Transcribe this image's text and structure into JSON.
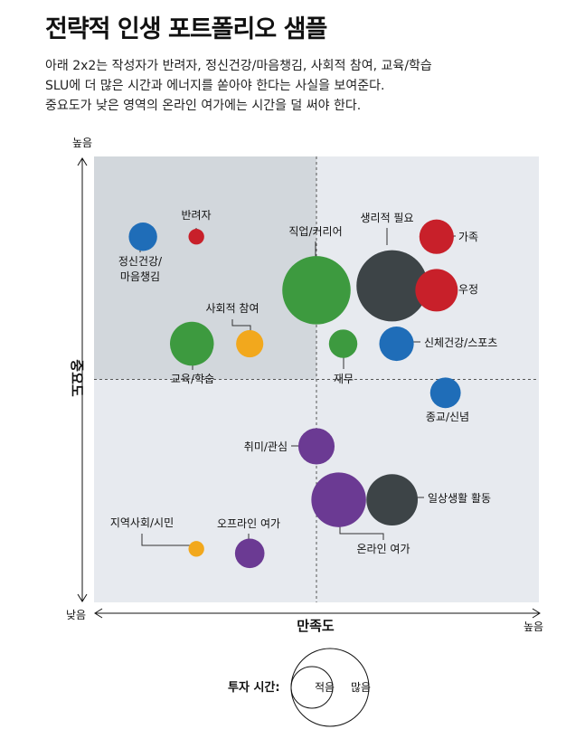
{
  "header": {
    "title": "전략적 인생 포트폴리오 샘플",
    "desc_lines": [
      "아래 2x2는 작성자가 반려자, 정신건강/마음챙김, 사회적 참여, 교육/학습",
      "SLU에 더 많은 시간과 에너지를 쏟아야 한다는 사실을 보여준다.",
      "중요도가 낮은 영역의 온라인 여가에는 시간을 덜 써야 한다."
    ]
  },
  "colors": {
    "red": "#c8202a",
    "dark": "#3d4447",
    "green": "#3d9a3f",
    "blue": "#1f6db8",
    "purple": "#6b3a93",
    "orange": "#f2a81d",
    "quadrant_highlight": "#d2d7dc",
    "quadrant_base": "#e7eaef"
  },
  "chart_data": {
    "type": "scatter",
    "xlabel": "만족도",
    "ylabel": "중요도",
    "x_low_label": "낮음",
    "x_high_label": "높음",
    "y_low_label": "낮음",
    "y_high_label": "높음",
    "xlim": [
      0,
      10
    ],
    "ylim": [
      0,
      10
    ],
    "size_legend": {
      "title": "투자 시간:",
      "small_label": "적음",
      "large_label": "많음"
    },
    "points": [
      {
        "name": "반려자",
        "x": 2.3,
        "y": 8.2,
        "size": 0.2,
        "color": "red"
      },
      {
        "name": "가족",
        "x": 7.7,
        "y": 8.2,
        "size": 1.6,
        "color": "red"
      },
      {
        "name": "우정",
        "x": 7.7,
        "y": 7.0,
        "size": 2.6,
        "color": "red"
      },
      {
        "name": "생리적 필요",
        "x": 6.7,
        "y": 7.1,
        "size": 8.2,
        "color": "dark"
      },
      {
        "name": "일상생활 활동",
        "x": 6.7,
        "y": 2.3,
        "size": 4.0,
        "color": "dark"
      },
      {
        "name": "직업/커리어",
        "x": 5.0,
        "y": 7.0,
        "size": 7.5,
        "color": "green"
      },
      {
        "name": "교육/학습",
        "x": 2.2,
        "y": 5.8,
        "size": 2.8,
        "color": "green"
      },
      {
        "name": "재무",
        "x": 5.6,
        "y": 5.8,
        "size": 1.0,
        "color": "green"
      },
      {
        "name": "정신건강/\n마음챙김",
        "x": 1.1,
        "y": 8.2,
        "size": 1.0,
        "color": "blue"
      },
      {
        "name": "신체건강/스포츠",
        "x": 6.8,
        "y": 5.8,
        "size": 1.6,
        "color": "blue"
      },
      {
        "name": "종교/신념",
        "x": 7.9,
        "y": 4.7,
        "size": 1.2,
        "color": "blue"
      },
      {
        "name": "사회적 참여",
        "x": 3.5,
        "y": 5.8,
        "size": 0.9,
        "color": "orange"
      },
      {
        "name": "지역사회/시민",
        "x": 2.3,
        "y": 1.2,
        "size": 0.2,
        "color": "orange"
      },
      {
        "name": "취미/관심",
        "x": 5.0,
        "y": 3.5,
        "size": 1.8,
        "color": "purple"
      },
      {
        "name": "온라인 여가",
        "x": 5.5,
        "y": 2.3,
        "size": 4.6,
        "color": "purple"
      },
      {
        "name": "오프라인 여가",
        "x": 3.5,
        "y": 1.1,
        "size": 1.1,
        "color": "purple"
      }
    ]
  }
}
